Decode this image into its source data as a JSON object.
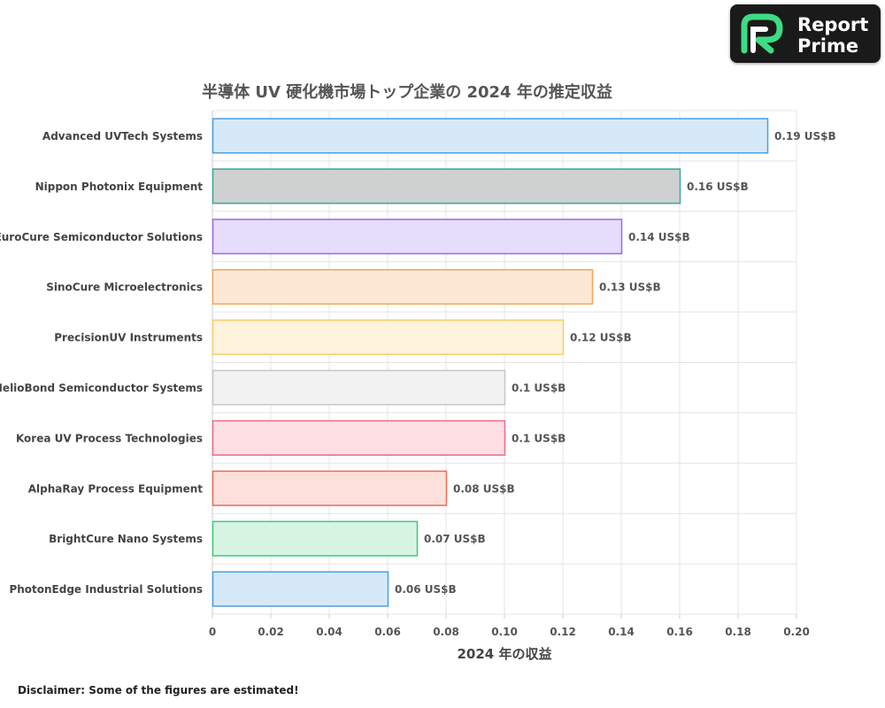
{
  "brand": {
    "line1": "Report",
    "line2": "Prime",
    "bg_color": "#1a1a1a",
    "accent_color": "#3ddc84"
  },
  "disclaimer": "Disclaimer: Some of the figures are estimated!",
  "chart_data": {
    "type": "bar",
    "orientation": "horizontal",
    "title": "半導体 UV 硬化機市場トップ企業の 2024 年の推定収益",
    "xlabel": "2024 年の収益",
    "ylabel": "",
    "xlim": [
      0,
      0.2
    ],
    "xticks": [
      "0",
      "0.02",
      "0.04",
      "0.06",
      "0.08",
      "0.10",
      "0.12",
      "0.14",
      "0.16",
      "0.18",
      "0.20"
    ],
    "grid": true,
    "value_suffix": " US$B",
    "categories": [
      "Advanced UVTech Systems",
      "Nippon Photonix Equipment",
      "EuroCure Semiconductor Solutions",
      "SinoCure Microelectronics",
      "PrecisionUV Instruments",
      "HelioBond Semiconductor Systems",
      "Korea UV Process Technologies",
      "AlphaRay Process Equipment",
      "BrightCure Nano Systems",
      "PhotonEdge Industrial Solutions"
    ],
    "values": [
      0.19,
      0.16,
      0.14,
      0.13,
      0.12,
      0.1,
      0.1,
      0.08,
      0.07,
      0.06
    ],
    "data_labels": [
      "0.19 US$B",
      "0.16 US$B",
      "0.14 US$B",
      "0.13 US$B",
      "0.12 US$B",
      "0.1 US$B",
      "0.1 US$B",
      "0.08 US$B",
      "0.07 US$B",
      "0.06 US$B"
    ],
    "bar_fills": [
      "#d6e9f8",
      "#cfd1d0",
      "#e6dcfb",
      "#fde8d6",
      "#fef3dc",
      "#f2f2f2",
      "#fddfe4",
      "#fde0db",
      "#d7f4e3",
      "#d6e9f8"
    ],
    "bar_strokes": [
      "#4a9fe0",
      "#3aa79b",
      "#9b6ae6",
      "#f5a45a",
      "#f5cf6a",
      "#c8c8c8",
      "#ef6a85",
      "#ef6a55",
      "#3fcb78",
      "#4a9fe0"
    ]
  }
}
